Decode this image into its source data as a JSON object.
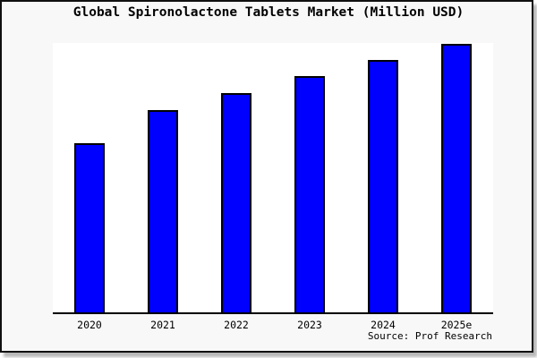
{
  "title": "Global Spironolactone Tablets Market (Million USD)",
  "source": "Source: Prof Research",
  "colors": {
    "bar_fill": "#0000fe",
    "bar_border": "#000000",
    "card_background": "#f8f8f8",
    "plot_background": "#ffffff",
    "axis": "#000000",
    "text": "#000000"
  },
  "chart_data": {
    "type": "bar",
    "title": "Global Spironolactone Tablets Market (Million USD)",
    "categories": [
      "2020",
      "2021",
      "2022",
      "2023",
      "2024",
      "2025e"
    ],
    "values": [
      63,
      75.4,
      81.7,
      88,
      93.9,
      100
    ],
    "value_note": "No y-axis ticks or data labels shown in the chart; values are bar heights normalized to 2025e = 100",
    "xlabel": "",
    "ylabel": "",
    "ylim": [
      0,
      100
    ],
    "grid": false,
    "legend": false,
    "source": "Source: Prof Research"
  }
}
